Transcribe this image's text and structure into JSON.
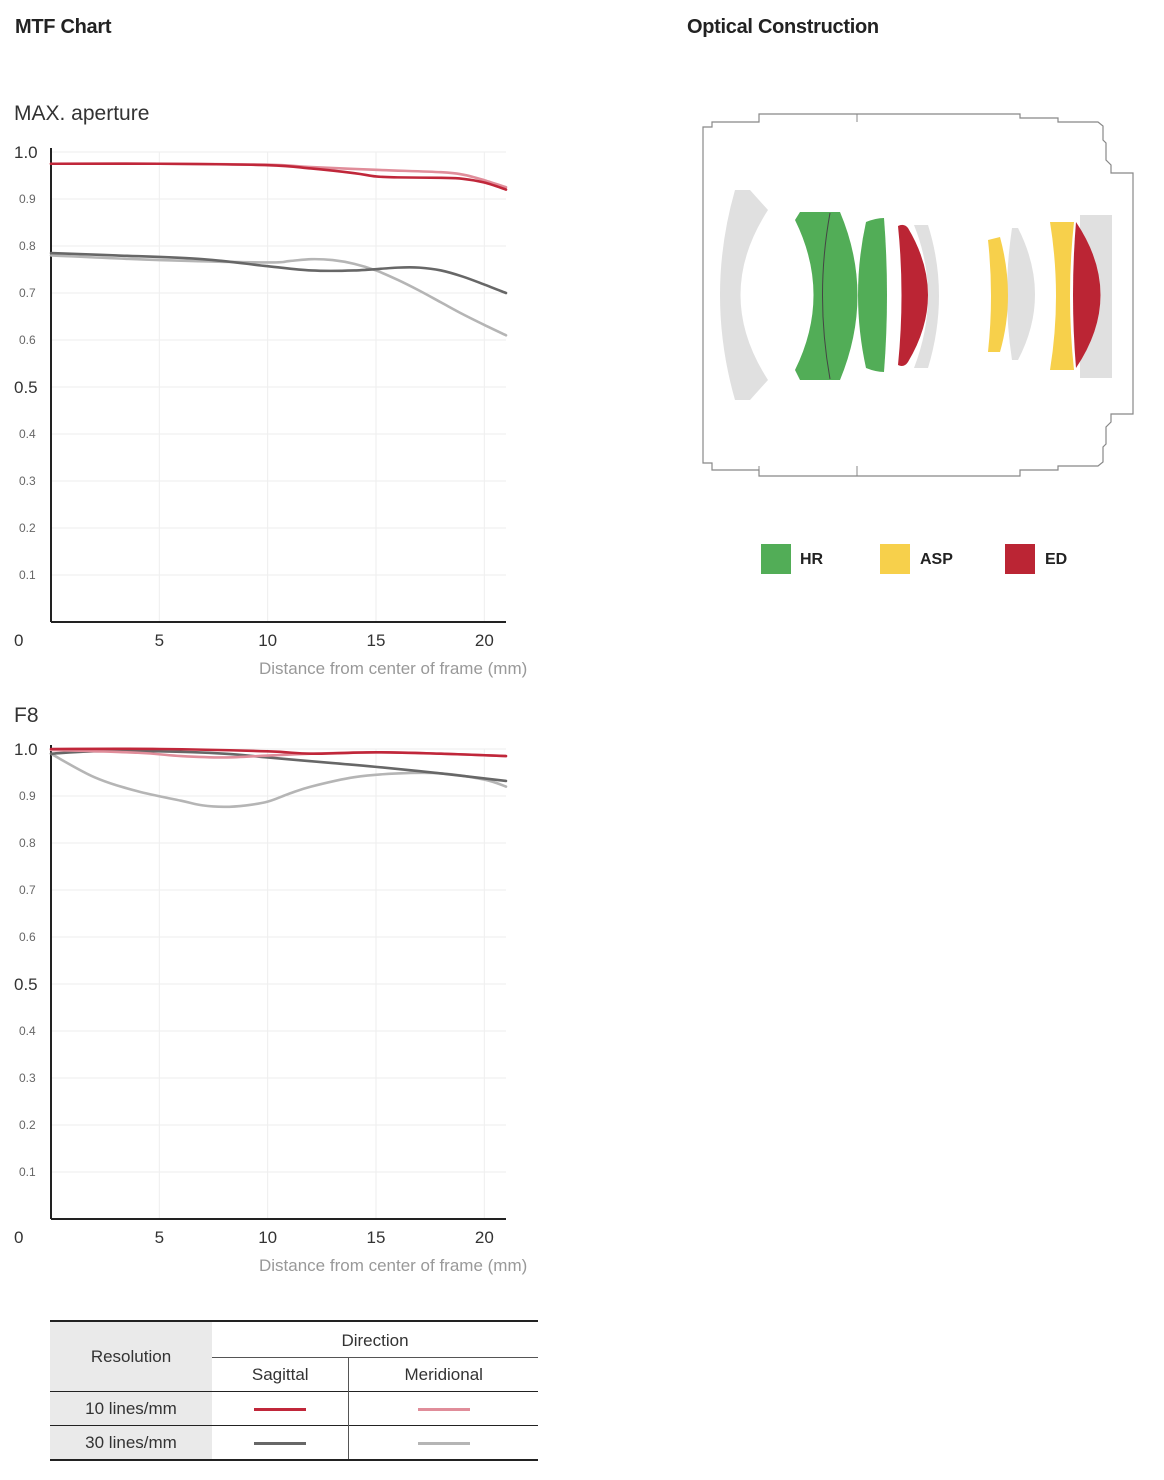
{
  "headings": {
    "mtf": "MTF Chart",
    "optical": "Optical Construction"
  },
  "chart_data": [
    {
      "type": "line",
      "title": "MAX. aperture",
      "xlabel": "Distance from center of frame (mm)",
      "ylabel": "",
      "xlim": [
        0,
        21
      ],
      "ylim": [
        0,
        1.0
      ],
      "x_ticks": [
        "5",
        "10",
        "15",
        "20"
      ],
      "y_ticks": [
        "0",
        "0.1",
        "0.2",
        "0.3",
        "0.4",
        "0.5",
        "0.6",
        "0.7",
        "0.8",
        "0.9",
        "1.0"
      ],
      "grid": true,
      "series": [
        {
          "name": "10 lines/mm Sagittal",
          "color": "#c0273a",
          "x": [
            0,
            5,
            10,
            12,
            14,
            15,
            16,
            18,
            19,
            20,
            21
          ],
          "y": [
            0.975,
            0.975,
            0.972,
            0.965,
            0.955,
            0.948,
            0.946,
            0.945,
            0.943,
            0.935,
            0.92
          ]
        },
        {
          "name": "10 lines/mm Meridional",
          "color": "#e08d9a",
          "x": [
            0,
            5,
            10,
            12,
            15,
            18,
            19,
            20,
            21
          ],
          "y": [
            0.975,
            0.975,
            0.973,
            0.968,
            0.962,
            0.957,
            0.952,
            0.94,
            0.925
          ]
        },
        {
          "name": "30 lines/mm Sagittal",
          "color": "#676767",
          "x": [
            0,
            3,
            7,
            10,
            12,
            14,
            16,
            17,
            18,
            19,
            20,
            21
          ],
          "y": [
            0.785,
            0.78,
            0.772,
            0.757,
            0.748,
            0.748,
            0.754,
            0.754,
            0.748,
            0.735,
            0.718,
            0.7
          ]
        },
        {
          "name": "30 lines/mm Meridional",
          "color": "#b5b5b5",
          "x": [
            0,
            5,
            10,
            11,
            12,
            13,
            14,
            15,
            16,
            17,
            18,
            19,
            20,
            21
          ],
          "y": [
            0.78,
            0.77,
            0.765,
            0.768,
            0.772,
            0.77,
            0.762,
            0.748,
            0.728,
            0.705,
            0.68,
            0.655,
            0.632,
            0.61
          ]
        }
      ]
    },
    {
      "type": "line",
      "title": "F8",
      "xlabel": "Distance from center of frame (mm)",
      "ylabel": "",
      "xlim": [
        0,
        21
      ],
      "ylim": [
        0,
        1.0
      ],
      "x_ticks": [
        "5",
        "10",
        "15",
        "20"
      ],
      "y_ticks": [
        "0",
        "0.1",
        "0.2",
        "0.3",
        "0.4",
        "0.5",
        "0.6",
        "0.7",
        "0.8",
        "0.9",
        "1.0"
      ],
      "grid": true,
      "series": [
        {
          "name": "10 lines/mm Sagittal",
          "color": "#c0273a",
          "x": [
            0,
            5,
            10,
            12,
            15,
            18,
            21
          ],
          "y": [
            1.0,
            1.0,
            0.995,
            0.99,
            0.993,
            0.99,
            0.985
          ]
        },
        {
          "name": "10 lines/mm Meridional",
          "color": "#e08d9a",
          "x": [
            0,
            4,
            6,
            8,
            10,
            12,
            15,
            18,
            21
          ],
          "y": [
            0.998,
            0.992,
            0.985,
            0.982,
            0.986,
            0.99,
            0.993,
            0.99,
            0.985
          ]
        },
        {
          "name": "30 lines/mm Sagittal",
          "color": "#676767",
          "x": [
            0,
            2,
            5,
            8,
            10,
            13,
            15,
            18,
            21
          ],
          "y": [
            0.99,
            0.995,
            0.995,
            0.99,
            0.982,
            0.97,
            0.962,
            0.948,
            0.932
          ]
        },
        {
          "name": "30 lines/mm Meridional",
          "color": "#b5b5b5",
          "x": [
            0,
            2,
            4,
            6,
            7,
            8,
            9,
            10,
            11,
            12,
            14,
            16,
            18,
            20,
            21
          ],
          "y": [
            0.99,
            0.94,
            0.91,
            0.89,
            0.88,
            0.877,
            0.88,
            0.888,
            0.905,
            0.92,
            0.94,
            0.948,
            0.948,
            0.935,
            0.92
          ]
        }
      ]
    }
  ],
  "table": {
    "resolution": "Resolution",
    "direction": "Direction",
    "sagittal": "Sagittal",
    "meridional": "Meridional",
    "rows": [
      {
        "label": "10 lines/mm",
        "sag_color": "#c0273a",
        "mer_color": "#e08d9a"
      },
      {
        "label": "30 lines/mm",
        "sag_color": "#676767",
        "mer_color": "#b5b5b5"
      }
    ]
  },
  "optical_legend": [
    {
      "label": "HR",
      "color": "#52ad57"
    },
    {
      "label": "ASP",
      "color": "#f7d04b"
    },
    {
      "label": "ED",
      "color": "#bb2534"
    }
  ]
}
